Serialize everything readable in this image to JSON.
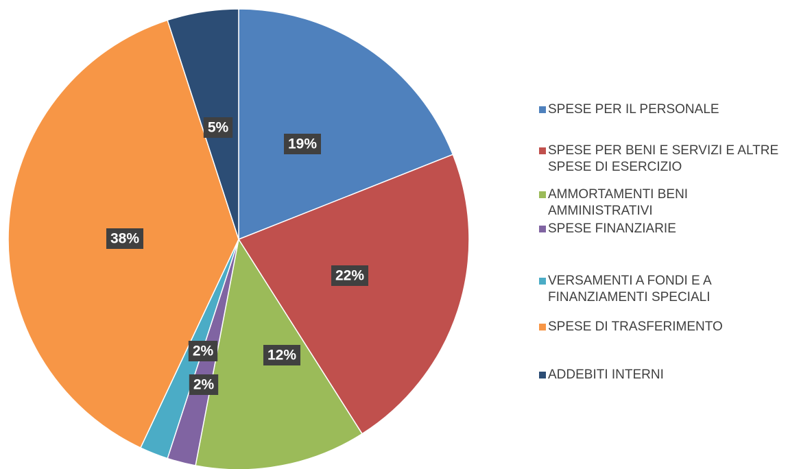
{
  "chart_data": {
    "type": "pie",
    "categories": [
      "SPESE PER IL PERSONALE",
      "SPESE PER BENI E SERVIZI E ALTRE SPESE DI ESERCIZIO",
      "AMMORTAMENTI BENI AMMINISTRATIVI",
      "SPESE FINANZIARIE",
      "VERSAMENTI A FONDI E A FINANZIAMENTI SPECIALI",
      "SPESE DI TRASFERIMENTO",
      "ADDEBITI INTERNI"
    ],
    "values": [
      19,
      22,
      12,
      2,
      2,
      38,
      5
    ],
    "value_labels": [
      "19%",
      "22%",
      "12%",
      "2%",
      "2%",
      "38%",
      "5%"
    ],
    "colors": [
      "#4f81bd",
      "#c0504d",
      "#9bbb59",
      "#8064a2",
      "#4bacc6",
      "#f79646",
      "#2c4d75"
    ],
    "legend": "right"
  }
}
